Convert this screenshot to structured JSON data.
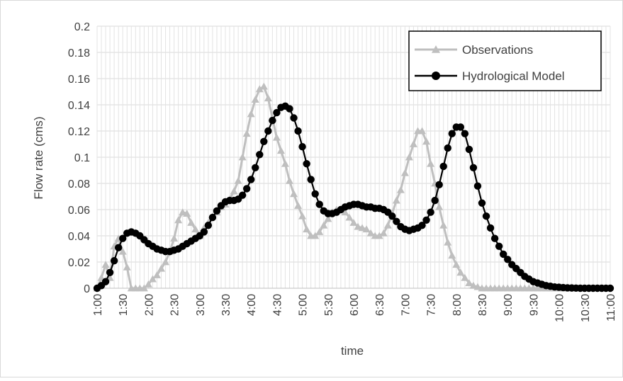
{
  "chart_data": {
    "type": "line",
    "title": "",
    "xlabel": "time",
    "ylabel": "Flow rate (cms)",
    "ylim": [
      0,
      0.2
    ],
    "yticks": [
      "0",
      "0.02",
      "0.04",
      "0.06",
      "0.08",
      "0.1",
      "0.12",
      "0.14",
      "0.16",
      "0.18",
      "0.2"
    ],
    "xticks": [
      "1:00",
      "1:30",
      "2:00",
      "2:30",
      "3:00",
      "3:30",
      "4:00",
      "4:30",
      "5:00",
      "5:30",
      "6:00",
      "6:30",
      "7:00",
      "7:30",
      "8:00",
      "8:30",
      "9:00",
      "9:30",
      "10:00",
      "10:30",
      "11:00"
    ],
    "x_start": "1:00",
    "x_step_minutes": 5,
    "grid": true,
    "legend_position": "top-right",
    "series": [
      {
        "name": "Observations",
        "color": "#bfbfbf",
        "marker": "triangle",
        "values": [
          0,
          0.008,
          0.018,
          0.008,
          0.032,
          0.038,
          0.028,
          0.016,
          0,
          0,
          0,
          0,
          0.003,
          0.007,
          0.01,
          0.015,
          0.02,
          0.028,
          0.038,
          0.052,
          0.058,
          0.057,
          0.05,
          0.045,
          0.04,
          0.046,
          0.05,
          0.055,
          0.058,
          0.062,
          0.064,
          0.068,
          0.074,
          0.082,
          0.1,
          0.118,
          0.133,
          0.144,
          0.152,
          0.154,
          0.145,
          0.13,
          0.115,
          0.105,
          0.095,
          0.082,
          0.072,
          0.063,
          0.055,
          0.045,
          0.04,
          0.04,
          0.043,
          0.048,
          0.053,
          0.058,
          0.06,
          0.06,
          0.058,
          0.054,
          0.05,
          0.047,
          0.046,
          0.045,
          0.042,
          0.04,
          0.04,
          0.042,
          0.048,
          0.057,
          0.067,
          0.075,
          0.088,
          0.1,
          0.11,
          0.12,
          0.12,
          0.112,
          0.095,
          0.08,
          0.062,
          0.048,
          0.035,
          0.025,
          0.018,
          0.012,
          0.008,
          0.004,
          0.002,
          0.001,
          0,
          0,
          0,
          0,
          0,
          0,
          0,
          0,
          0,
          0,
          0,
          0,
          0,
          0,
          0,
          0,
          0,
          0,
          0,
          0,
          0,
          0
        ]
      },
      {
        "name": "Hydrological Model",
        "color": "#000000",
        "marker": "circle",
        "values": [
          0,
          0.002,
          0.005,
          0.012,
          0.021,
          0.031,
          0.038,
          0.042,
          0.043,
          0.042,
          0.04,
          0.037,
          0.034,
          0.032,
          0.03,
          0.029,
          0.028,
          0.028,
          0.029,
          0.03,
          0.032,
          0.034,
          0.036,
          0.038,
          0.04,
          0.043,
          0.048,
          0.054,
          0.059,
          0.063,
          0.066,
          0.067,
          0.067,
          0.068,
          0.071,
          0.076,
          0.083,
          0.092,
          0.102,
          0.112,
          0.12,
          0.128,
          0.134,
          0.138,
          0.139,
          0.137,
          0.13,
          0.12,
          0.108,
          0.095,
          0.083,
          0.072,
          0.064,
          0.059,
          0.057,
          0.057,
          0.058,
          0.06,
          0.062,
          0.063,
          0.064,
          0.064,
          0.063,
          0.062,
          0.062,
          0.061,
          0.061,
          0.06,
          0.058,
          0.055,
          0.051,
          0.047,
          0.045,
          0.044,
          0.045,
          0.046,
          0.048,
          0.052,
          0.058,
          0.067,
          0.079,
          0.093,
          0.107,
          0.118,
          0.123,
          0.123,
          0.118,
          0.106,
          0.092,
          0.078,
          0.065,
          0.055,
          0.046,
          0.038,
          0.032,
          0.026,
          0.022,
          0.018,
          0.015,
          0.012,
          0.009,
          0.007,
          0.005,
          0.004,
          0.003,
          0.002,
          0.0015,
          0.001,
          0.0008,
          0.0005,
          0.0003,
          0.0002,
          0.0001,
          0,
          0,
          0,
          0,
          0,
          0,
          0,
          0
        ]
      }
    ]
  }
}
